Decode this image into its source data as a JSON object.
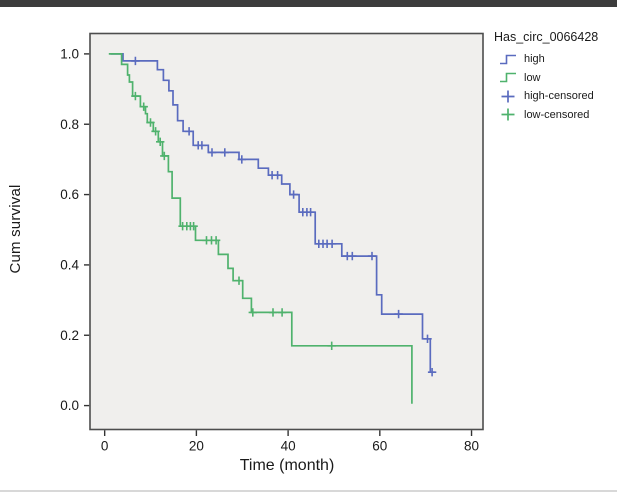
{
  "figure": {
    "background": "#ffffff",
    "top_bar_color": "#3c3c3c",
    "bottom_hairline_color": "#d8d8d8"
  },
  "chart_data": {
    "type": "line",
    "subtype": "kaplan-meier-step",
    "title": "",
    "xlabel": "Time (month)",
    "ylabel": "Cum survival",
    "xlim": [
      -3.2,
      82.5
    ],
    "ylim": [
      -0.068,
      1.058
    ],
    "grid": false,
    "plot_background": "#f0efed",
    "frame_color": "#4d4d4d",
    "tick_color": "#333333",
    "tick_label_color": "#1a1a1a",
    "xticks": [
      {
        "v": 0,
        "label": "0"
      },
      {
        "v": 20,
        "label": "20"
      },
      {
        "v": 40,
        "label": "40"
      },
      {
        "v": 60,
        "label": "60"
      },
      {
        "v": 80,
        "label": "80"
      }
    ],
    "yticks": [
      {
        "v": 0.0,
        "label": "0.0"
      },
      {
        "v": 0.2,
        "label": "0.2"
      },
      {
        "v": 0.4,
        "label": "0.4"
      },
      {
        "v": 0.6,
        "label": "0.6"
      },
      {
        "v": 0.8,
        "label": "0.8"
      },
      {
        "v": 1.0,
        "label": "1.0"
      }
    ],
    "series": [
      {
        "name": "high",
        "color": "#5a6bbf",
        "end_time": 72,
        "steps": [
          [
            1.3,
            1.0
          ],
          [
            4.0,
            0.98
          ],
          [
            11.5,
            0.955
          ],
          [
            12.8,
            0.925
          ],
          [
            14.0,
            0.895
          ],
          [
            14.9,
            0.855
          ],
          [
            15.9,
            0.81
          ],
          [
            17.1,
            0.78
          ],
          [
            19.3,
            0.74
          ],
          [
            22.6,
            0.72
          ],
          [
            29.3,
            0.7
          ],
          [
            33.5,
            0.675
          ],
          [
            35.7,
            0.655
          ],
          [
            38.6,
            0.63
          ],
          [
            40.4,
            0.6
          ],
          [
            42.4,
            0.55
          ],
          [
            45.9,
            0.46
          ],
          [
            51.7,
            0.425
          ],
          [
            59.3,
            0.315
          ],
          [
            60.4,
            0.26
          ],
          [
            69.3,
            0.19
          ],
          [
            71.0,
            0.095
          ]
        ],
        "censored": [
          [
            6.7,
            0.98
          ],
          [
            18.4,
            0.78
          ],
          [
            20.4,
            0.74
          ],
          [
            21.2,
            0.74
          ],
          [
            23.4,
            0.72
          ],
          [
            26.2,
            0.72
          ],
          [
            29.9,
            0.7
          ],
          [
            36.5,
            0.655
          ],
          [
            37.7,
            0.655
          ],
          [
            41.2,
            0.6
          ],
          [
            43.2,
            0.55
          ],
          [
            44.1,
            0.55
          ],
          [
            44.9,
            0.55
          ],
          [
            46.7,
            0.46
          ],
          [
            47.6,
            0.46
          ],
          [
            48.5,
            0.46
          ],
          [
            49.6,
            0.46
          ],
          [
            52.9,
            0.425
          ],
          [
            54.0,
            0.425
          ],
          [
            58.3,
            0.425
          ],
          [
            64.1,
            0.26
          ],
          [
            70.4,
            0.19
          ],
          [
            71.4,
            0.095
          ]
        ]
      },
      {
        "name": "low",
        "color": "#4fb26d",
        "end_time": null,
        "steps": [
          [
            0.9,
            1.0
          ],
          [
            3.7,
            0.97
          ],
          [
            5.0,
            0.94
          ],
          [
            5.4,
            0.92
          ],
          [
            6.1,
            0.88
          ],
          [
            7.8,
            0.85
          ],
          [
            8.9,
            0.83
          ],
          [
            9.3,
            0.805
          ],
          [
            10.6,
            0.78
          ],
          [
            11.7,
            0.75
          ],
          [
            12.6,
            0.71
          ],
          [
            13.9,
            0.665
          ],
          [
            14.7,
            0.59
          ],
          [
            16.5,
            0.51
          ],
          [
            19.8,
            0.47
          ],
          [
            24.8,
            0.43
          ],
          [
            26.9,
            0.39
          ],
          [
            28.0,
            0.355
          ],
          [
            30.1,
            0.305
          ],
          [
            32.0,
            0.265
          ],
          [
            40.8,
            0.17
          ],
          [
            67.0,
            0.005
          ]
        ],
        "censored": [
          [
            6.7,
            0.88
          ],
          [
            8.5,
            0.85
          ],
          [
            10.0,
            0.805
          ],
          [
            11.1,
            0.78
          ],
          [
            12.1,
            0.75
          ],
          [
            13.0,
            0.71
          ],
          [
            17.0,
            0.51
          ],
          [
            17.9,
            0.51
          ],
          [
            18.7,
            0.51
          ],
          [
            19.4,
            0.51
          ],
          [
            22.2,
            0.47
          ],
          [
            23.3,
            0.47
          ],
          [
            24.3,
            0.47
          ],
          [
            29.3,
            0.355
          ],
          [
            32.3,
            0.265
          ],
          [
            36.7,
            0.265
          ],
          [
            38.7,
            0.265
          ],
          [
            49.5,
            0.17
          ]
        ]
      }
    ],
    "legend": {
      "title": "Has_circ_0066428",
      "position": "outside-right-top",
      "items": [
        {
          "label": "high",
          "glyph": "step",
          "color": "#5a6bbf"
        },
        {
          "label": "low",
          "glyph": "step",
          "color": "#4fb26d"
        },
        {
          "label": "high-censored",
          "glyph": "plus",
          "color": "#5a6bbf"
        },
        {
          "label": "low-censored",
          "glyph": "plus",
          "color": "#4fb26d"
        }
      ]
    }
  }
}
